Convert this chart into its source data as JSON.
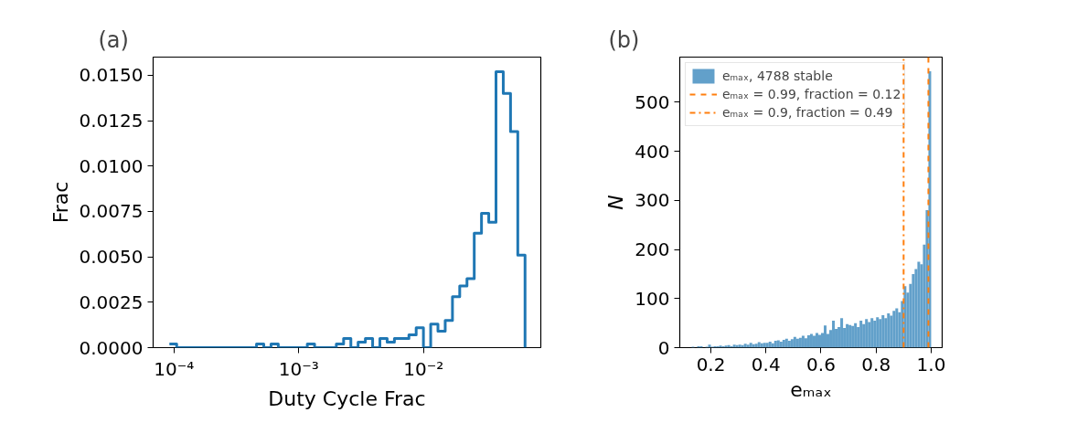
{
  "chart_data": [
    {
      "type": "step",
      "title": "(a)",
      "xlabel": "Duty Cycle Frac",
      "ylabel": "Frac",
      "log": "x",
      "grid": false,
      "legend": false,
      "x": [
        9.183e-05,
        0.00010499,
        0.00012004,
        0.00013724,
        0.00015691,
        0.0001794,
        0.00020511,
        0.00023451,
        0.00026812,
        0.00030655,
        0.00035048,
        0.00040071,
        0.00045814,
        0.0005238,
        0.00059887,
        0.0006847,
        0.00078283,
        0.000895,
        0.0010233,
        0.00117,
        0.0013377,
        0.0015294,
        0.0017486,
        0.0019992,
        0.0022857,
        0.0026133,
        0.0029878,
        0.003416,
        0.0039056,
        0.0044653,
        0.0051053,
        0.005837,
        0.0066735,
        0.00763,
        0.0087234,
        0.0099737,
        0.011403,
        0.013037,
        0.014906,
        0.017042,
        0.019485,
        0.022277,
        0.02547,
        0.02912,
        0.033294,
        0.038065,
        0.043521,
        0.049758,
        0.05689,
        0.065043
      ],
      "series": [
        {
          "color": "#1f77b4",
          "values": [
            0.0002,
            0,
            0,
            0,
            0,
            0,
            0,
            0,
            0,
            0,
            0,
            0,
            0.0002,
            0,
            0.0002,
            0,
            0,
            0,
            0,
            0.0002,
            0,
            0,
            0,
            0.0002,
            0.0005,
            0,
            0.0003,
            0.0005,
            0,
            0.0005,
            0.0003,
            0.0005,
            0.0005,
            0.0007,
            0.0011,
            0,
            0.0013,
            0.0009,
            0.0015,
            0.0028,
            0.0034,
            0.0038,
            0.0063,
            0.0074,
            0.0069,
            0.0152,
            0.014,
            0.0119,
            0.0051,
            0
          ]
        }
      ],
      "xlim": [
        6.8e-05,
        0.087
      ],
      "ylim": [
        0,
        0.016
      ],
      "xticks": [
        {
          "value": 0.0001,
          "label": "10⁻⁴"
        },
        {
          "value": 0.001,
          "label": "10⁻³"
        },
        {
          "value": 0.01,
          "label": "10⁻²"
        }
      ],
      "yticks": [
        {
          "value": 0,
          "label": "0.0000"
        },
        {
          "value": 0.0025,
          "label": "0.0025"
        },
        {
          "value": 0.005,
          "label": "0.0050"
        },
        {
          "value": 0.0075,
          "label": "0.0075"
        },
        {
          "value": 0.01,
          "label": "0.0100"
        },
        {
          "value": 0.0125,
          "label": "0.0125"
        },
        {
          "value": 0.015,
          "label": "0.0150"
        }
      ]
    },
    {
      "type": "bar",
      "title": "(b)",
      "xlabel": "eₘₐₓ",
      "ylabel": "N",
      "grid": false,
      "legend": "top left",
      "x": [
        0.135,
        0.145,
        0.155,
        0.165,
        0.175,
        0.185,
        0.195,
        0.205,
        0.215,
        0.225,
        0.235,
        0.245,
        0.255,
        0.265,
        0.275,
        0.285,
        0.295,
        0.305,
        0.315,
        0.325,
        0.335,
        0.345,
        0.355,
        0.365,
        0.375,
        0.385,
        0.395,
        0.405,
        0.415,
        0.425,
        0.435,
        0.445,
        0.455,
        0.465,
        0.475,
        0.485,
        0.495,
        0.505,
        0.515,
        0.525,
        0.535,
        0.545,
        0.555,
        0.565,
        0.575,
        0.585,
        0.595,
        0.605,
        0.615,
        0.625,
        0.635,
        0.645,
        0.655,
        0.665,
        0.675,
        0.685,
        0.695,
        0.705,
        0.715,
        0.725,
        0.735,
        0.745,
        0.755,
        0.765,
        0.775,
        0.785,
        0.795,
        0.805,
        0.815,
        0.825,
        0.835,
        0.845,
        0.855,
        0.865,
        0.875,
        0.885,
        0.895,
        0.905,
        0.915,
        0.925,
        0.935,
        0.945,
        0.955,
        0.965,
        0.975,
        0.985,
        0.995
      ],
      "series": [
        {
          "name": "eₘₐₓ, 4788 stable",
          "color": "#62a0ca",
          "values": [
            2,
            0,
            3,
            3,
            0,
            2,
            6,
            2,
            3,
            3,
            4,
            3,
            4,
            5,
            3,
            6,
            5,
            6,
            5,
            8,
            6,
            10,
            7,
            8,
            11,
            9,
            10,
            10,
            12,
            9,
            14,
            15,
            12,
            16,
            18,
            14,
            17,
            22,
            18,
            20,
            24,
            19,
            25,
            28,
            24,
            30,
            26,
            30,
            45,
            28,
            36,
            55,
            38,
            42,
            60,
            40,
            48,
            46,
            44,
            50,
            42,
            55,
            48,
            58,
            52,
            60,
            55,
            62,
            58,
            66,
            60,
            70,
            65,
            75,
            80,
            72,
            95,
            125,
            112,
            130,
            150,
            160,
            175,
            170,
            210,
            280,
            563
          ]
        }
      ],
      "ref_lines": [
        {
          "axis": "x",
          "value": 0.99,
          "label": "eₘₐₓ = 0.99, fraction = 0.12",
          "color": "#ff7f0e",
          "line_style": "dashed"
        },
        {
          "axis": "x",
          "value": 0.9,
          "label": "eₘₐₓ = 0.9, fraction = 0.49",
          "color": "#ff7f0e",
          "line_style": "dashdot"
        }
      ],
      "xlim": [
        0.087,
        1.04
      ],
      "ylim": [
        0,
        592
      ],
      "xticks": [
        0.2,
        0.4,
        0.6,
        0.8,
        {
          "value": 1.0,
          "label": "1.0"
        }
      ],
      "yticks": [
        0,
        100,
        200,
        300,
        400,
        500
      ]
    }
  ]
}
